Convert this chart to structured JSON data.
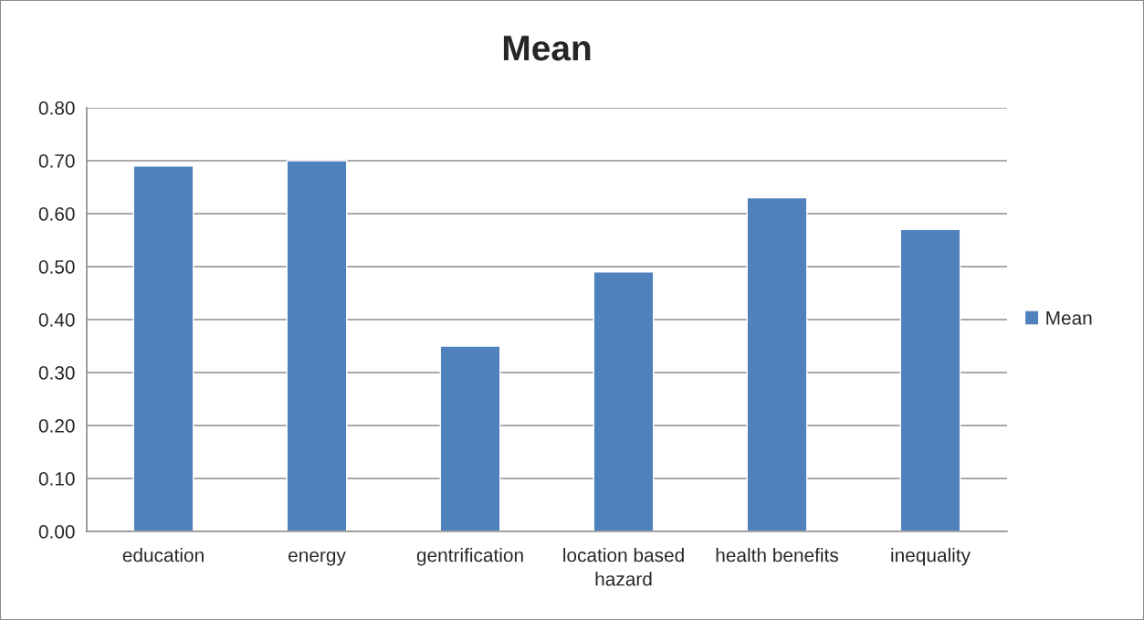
{
  "chart_data": {
    "type": "bar",
    "title": "Mean",
    "categories": [
      "education",
      "energy",
      "gentrification",
      "location based\nhazard",
      "health benefits",
      "inequality"
    ],
    "series": [
      {
        "name": "Mean",
        "color": "#4f81bd",
        "values": [
          0.69,
          0.7,
          0.35,
          0.49,
          0.63,
          0.57
        ]
      }
    ],
    "ylim": [
      0,
      0.8
    ],
    "yticks": [
      {
        "value": 0,
        "label": "0.00"
      },
      {
        "value": 0.1,
        "label": "0.10"
      },
      {
        "value": 0.2,
        "label": "0.20"
      },
      {
        "value": 0.3,
        "label": "0.30"
      },
      {
        "value": 0.4,
        "label": "0.40"
      },
      {
        "value": 0.5,
        "label": "0.50"
      },
      {
        "value": 0.6,
        "label": "0.60"
      },
      {
        "value": 0.7,
        "label": "0.70"
      },
      {
        "value": 0.8,
        "label": "0.80"
      }
    ],
    "grid": "y",
    "legend": "right"
  }
}
